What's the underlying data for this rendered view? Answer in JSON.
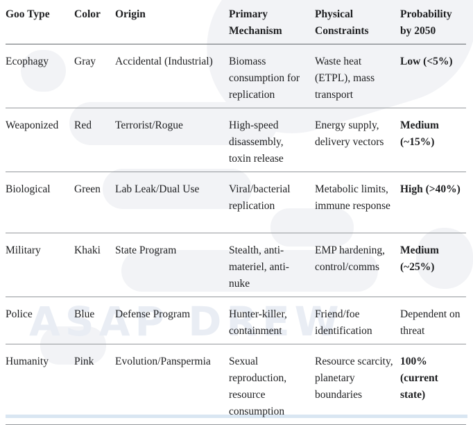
{
  "page": {
    "watermark": "ASAP DREW"
  },
  "colors": {
    "text": "#1d1e20",
    "header_rule": "#63676c",
    "row_rule": "#95989c",
    "watermark": "#e9edf4",
    "logo_blob": "#f2f3f6",
    "bottom_accent": "#d9e6f2"
  },
  "table": {
    "headers": [
      "Goo Type",
      "Color",
      "Origin",
      "Primary Mechanism",
      "Physical Constraints",
      "Probability by 2050"
    ],
    "rows": [
      {
        "goo_type": "Ecophagy",
        "color": "Gray",
        "origin": "Accidental (Industrial)",
        "primary_mechanism": "Biomass consumption for replication",
        "physical_constraints": "Waste heat (ETPL), mass transport",
        "probability": "Low (<5%)"
      },
      {
        "goo_type": "Weaponized",
        "color": "Red",
        "origin": "Terrorist/Rogue",
        "primary_mechanism": "High-speed disassembly, toxin release",
        "physical_constraints": "Energy supply, delivery vectors",
        "probability": "Medium (~15%)"
      },
      {
        "goo_type": "Biological",
        "color": "Green",
        "origin": "Lab Leak/Dual Use",
        "primary_mechanism": "Viral/bacterial replication",
        "physical_constraints": "Metabolic limits, immune response",
        "probability": "High (>40%)"
      },
      {
        "goo_type": "Military",
        "color": "Khaki",
        "origin": "State Program",
        "primary_mechanism": "Stealth, anti-materiel, anti-nuke",
        "physical_constraints": "EMP hardening, control/comms",
        "probability": "Medium (~25%)"
      },
      {
        "goo_type": "Police",
        "color": "Blue",
        "origin": "Defense Program",
        "primary_mechanism": "Hunter-killer, containment",
        "physical_constraints": "Friend/foe identification",
        "probability": "Dependent on threat"
      },
      {
        "goo_type": "Humanity",
        "color": "Pink",
        "origin": "Evolution/Panspermia",
        "primary_mechanism": "Sexual reproduction, resource consumption",
        "physical_constraints": "Resource scarcity, planetary boundaries",
        "probability": "100% (current state)"
      }
    ]
  }
}
